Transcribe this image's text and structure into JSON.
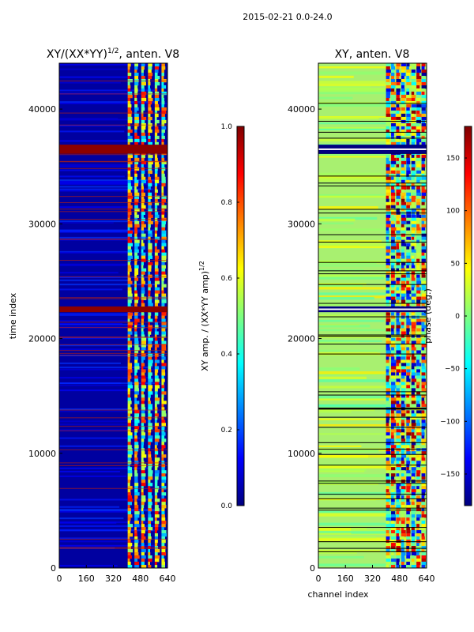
{
  "figure": {
    "suptitle": "2015-02-21 0.0-24.0"
  },
  "chart_data": [
    {
      "type": "heatmap",
      "title": "XY/(XX*YY)",
      "title_superscript": "1/2",
      "title_suffix": ", anten. V8",
      "xlabel": "",
      "ylabel": "time index",
      "xlim": [
        0,
        640
      ],
      "ylim": [
        0,
        44000
      ],
      "x_ticks": [
        0,
        160,
        320,
        480,
        640
      ],
      "y_ticks": [
        0,
        10000,
        20000,
        30000,
        40000
      ],
      "colormap": "jet",
      "background_color": "#0000a0",
      "active_channel_range": [
        400,
        640
      ],
      "active_level": 0.6,
      "saturated_time_bands": [
        [
          36100,
          36900
        ],
        [
          22300,
          22800
        ]
      ],
      "colorbar": {
        "label": "XY amp. / (XX*YY amp)",
        "label_superscript": "1/2",
        "min": 0.0,
        "max": 1.0,
        "ticks": [
          "0.0",
          "0.2",
          "0.4",
          "0.6",
          "0.8",
          "1.0"
        ]
      }
    },
    {
      "type": "heatmap",
      "title": "XY, anten. V8",
      "xlabel": "channel index",
      "ylabel": "",
      "xlim": [
        0,
        640
      ],
      "ylim": [
        0,
        44000
      ],
      "x_ticks": [
        0,
        160,
        320,
        480,
        640
      ],
      "y_ticks": [
        0,
        10000,
        20000,
        30000,
        40000
      ],
      "colormap": "jet",
      "background_color": "#a8f070",
      "active_channel_range": [
        400,
        640
      ],
      "active_level": "wrapped phase (varies)",
      "saturated_time_bands": [
        [
          36100,
          36900
        ],
        [
          22300,
          22800
        ]
      ],
      "colorbar": {
        "label": "phase (deg.)",
        "min": -180,
        "max": 180,
        "ticks": [
          "−150",
          "−100",
          "−50",
          "0",
          "50",
          "100",
          "150"
        ]
      }
    }
  ],
  "colors": {
    "jet": [
      "#00007f",
      "#0000ff",
      "#007fff",
      "#00ffff",
      "#7fff7f",
      "#ffff00",
      "#ff7f00",
      "#ff0000",
      "#7f0000"
    ]
  }
}
